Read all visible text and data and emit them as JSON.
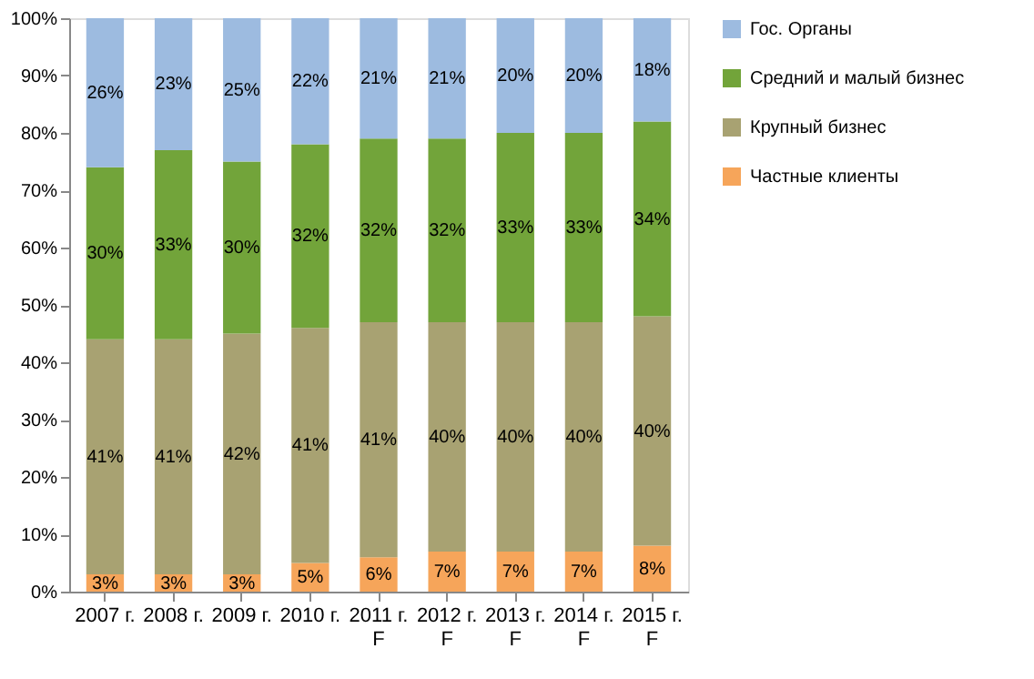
{
  "chart_data": {
    "type": "bar",
    "stacked": true,
    "categories": [
      "2007 г.",
      "2008 г.",
      "2009 г.",
      "2010 г.",
      "2011 г.\nF",
      "2012 г.\nF",
      "2013 г.\nF",
      "2014 г.\nF",
      "2015 г.\nF"
    ],
    "series": [
      {
        "name": "Частные клиенты",
        "color": "#f6a55a",
        "values": [
          3,
          3,
          3,
          5,
          6,
          7,
          7,
          7,
          8
        ],
        "value_labels": [
          "3%",
          "3%",
          "3%",
          "5%",
          "6%",
          "7%",
          "7%",
          "7%",
          "8%"
        ]
      },
      {
        "name": "Крупный  бизнес",
        "color": "#a8a272",
        "values": [
          41,
          41,
          42,
          41,
          41,
          40,
          40,
          40,
          40
        ],
        "value_labels": [
          "41%",
          "41%",
          "42%",
          "41%",
          "41%",
          "40%",
          "40%",
          "40%",
          "40%"
        ]
      },
      {
        "name": "Средний и малый бизнес",
        "color": "#72a43a",
        "values": [
          30,
          33,
          30,
          32,
          32,
          32,
          33,
          33,
          34
        ],
        "value_labels": [
          "30%",
          "33%",
          "30%",
          "32%",
          "32%",
          "32%",
          "33%",
          "33%",
          "34%"
        ]
      },
      {
        "name": "Гос. Органы",
        "color": "#9dbbe0",
        "values": [
          26,
          23,
          25,
          22,
          21,
          21,
          20,
          20,
          18
        ],
        "value_labels": [
          "26%",
          "23%",
          "25%",
          "22%",
          "21%",
          "21%",
          "20%",
          "20%",
          "18%"
        ]
      }
    ],
    "ylim": [
      0,
      100
    ],
    "yticks": [
      {
        "value": 0,
        "label": "0%"
      },
      {
        "value": 10,
        "label": "10%"
      },
      {
        "value": 20,
        "label": "20%"
      },
      {
        "value": 30,
        "label": "30%"
      },
      {
        "value": 40,
        "label": "40%"
      },
      {
        "value": 50,
        "label": "50%"
      },
      {
        "value": 60,
        "label": "60%"
      },
      {
        "value": 70,
        "label": "70%"
      },
      {
        "value": 80,
        "label": "80%"
      },
      {
        "value": 90,
        "label": "90%"
      },
      {
        "value": 100,
        "label": "100%"
      }
    ],
    "grid": false,
    "legend": "right"
  }
}
